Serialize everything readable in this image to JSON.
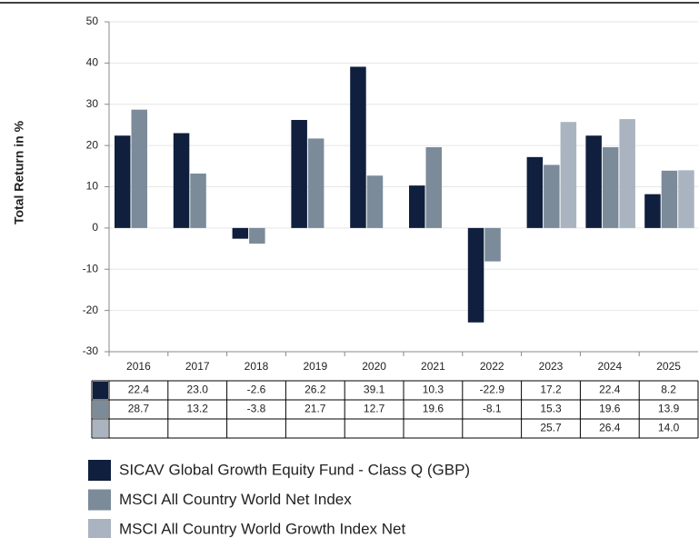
{
  "chart_data": {
    "type": "bar",
    "y_label": "Total Return in %",
    "categories": [
      "2016",
      "2017",
      "2018",
      "2019",
      "2020",
      "2021",
      "2022",
      "2023",
      "2024",
      "2025"
    ],
    "series": [
      {
        "name": "SICAV Global Growth Equity Fund - Class Q (GBP)",
        "color": "#0f1f3d",
        "values": [
          22.4,
          23.0,
          -2.6,
          26.2,
          39.1,
          10.3,
          -22.9,
          17.2,
          22.4,
          8.2
        ],
        "value_labels": [
          "22.4",
          "23.0",
          "-2.6",
          "26.2",
          "39.1",
          "10.3",
          "-22.9",
          "17.2",
          "22.4",
          "8.2"
        ]
      },
      {
        "name": "MSCI All Country World Net Index",
        "color": "#7b8b9a",
        "values": [
          28.7,
          13.2,
          -3.8,
          21.7,
          12.7,
          19.6,
          -8.1,
          15.3,
          19.6,
          13.9
        ],
        "value_labels": [
          "28.7",
          "13.2",
          "-3.8",
          "21.7",
          "12.7",
          "19.6",
          "-8.1",
          "15.3",
          "19.6",
          "13.9"
        ]
      },
      {
        "name": "MSCI All Country World Growth Index Net",
        "color": "#a9b4c0",
        "values": [
          null,
          null,
          null,
          null,
          null,
          null,
          null,
          25.7,
          26.4,
          14.0
        ],
        "value_labels": [
          null,
          null,
          null,
          null,
          null,
          null,
          null,
          "25.7",
          "26.4",
          "14.0"
        ]
      }
    ],
    "ylim": [
      -30,
      50
    ],
    "yticks": [
      -30,
      -20,
      -10,
      0,
      10,
      20,
      30,
      40,
      50
    ],
    "grid": true
  }
}
